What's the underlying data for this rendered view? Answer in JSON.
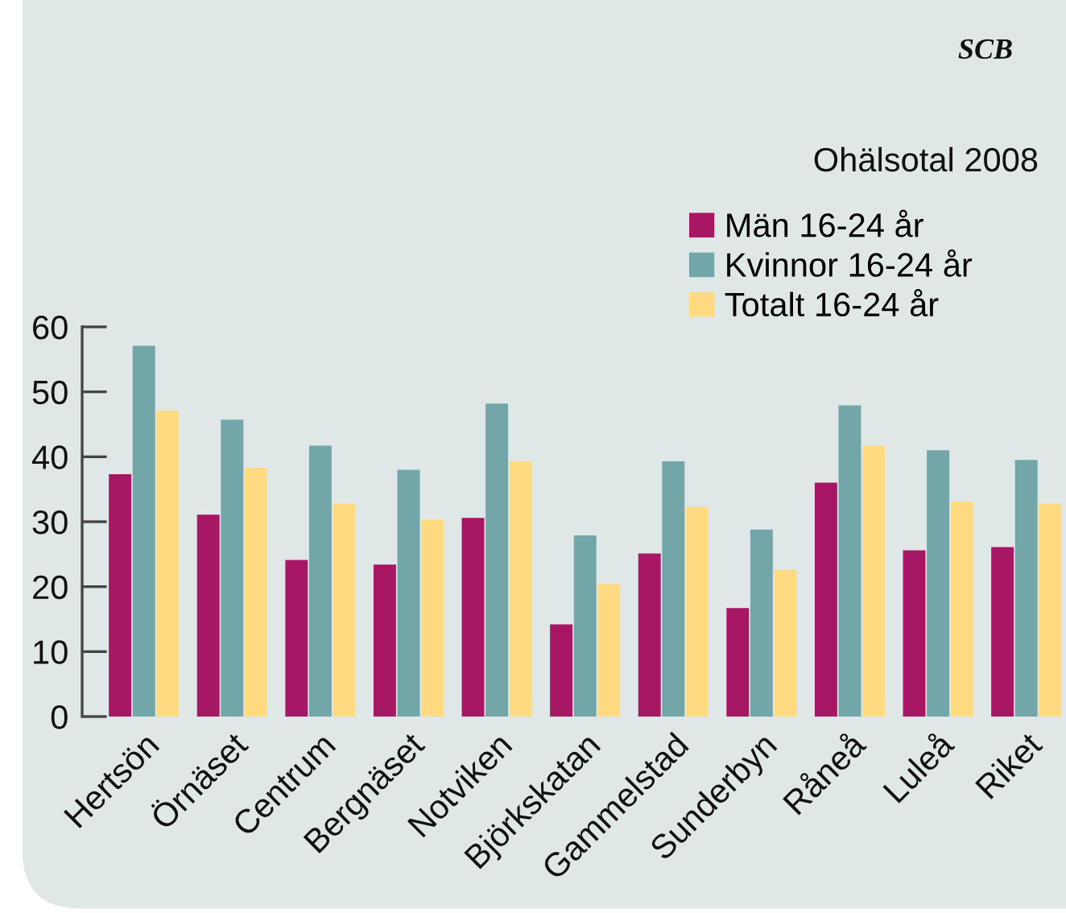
{
  "chart_data": {
    "type": "bar",
    "title": "Ohälsotal 2008",
    "categories": [
      "Hertsön",
      "Örnäset",
      "Centrum",
      "Bergnäset",
      "Notviken",
      "Björkskatan",
      "Gammelstad",
      "Sunderbyn",
      "Råneå",
      "Luleå",
      "Riket"
    ],
    "series": [
      {
        "name": "Män 16-24 år",
        "color": "#a71764",
        "values": [
          37.3,
          31.1,
          24.1,
          23.4,
          30.6,
          14.2,
          25.1,
          16.7,
          36.0,
          25.6,
          26.1
        ]
      },
      {
        "name": "Kvinnor 16-24 år",
        "color": "#72a6a8",
        "values": [
          57.1,
          45.7,
          41.7,
          38.0,
          48.2,
          27.9,
          39.3,
          28.8,
          47.9,
          41.0,
          39.5
        ]
      },
      {
        "name": "Totalt 16-24 år",
        "color": "#ffda80",
        "values": [
          47.1,
          38.3,
          32.8,
          30.3,
          39.3,
          20.4,
          32.3,
          22.6,
          41.7,
          33.1,
          32.8
        ]
      }
    ],
    "ylim": [
      0,
      60
    ],
    "yticks": [
      0,
      10,
      20,
      30,
      40,
      50,
      60
    ],
    "grid": false,
    "legend": "top right",
    "annotations": [
      "SCB"
    ]
  }
}
